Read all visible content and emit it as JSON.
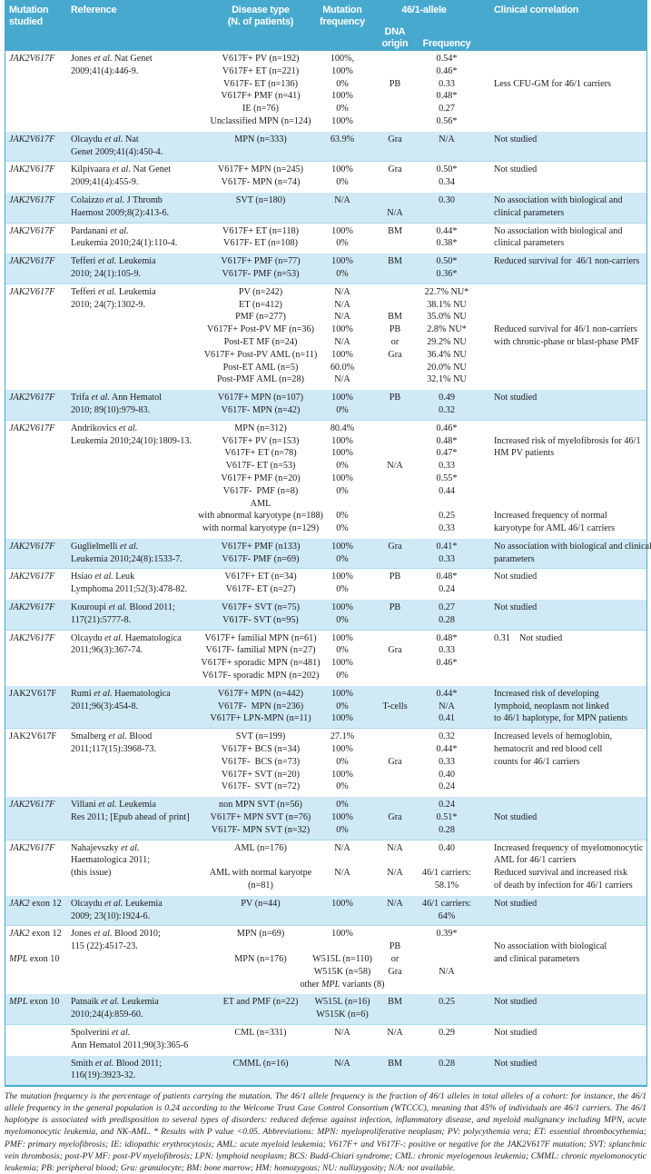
{
  "colors": {
    "header_bg": "#47a9ce",
    "band_blue": "#cfe9f5",
    "rule": "#a9d9ee"
  },
  "italic_tokens": [
    "JAK2V617F",
    "JAK2",
    "MPL"
  ],
  "table": {
    "col_names": [
      "mutation-cell",
      "reference-cell",
      "disease-type-cell",
      "mutation-frequency-cell",
      "dna-origin-cell",
      "allele-frequency-cell",
      "clinical-correlation-cell"
    ],
    "header": {
      "mutation": "Mutation\nstudied",
      "reference": "Reference",
      "disease": "Disease type\n(N. of patients)",
      "mut_freq": "Mutation\nfrequency",
      "allele_group": "46/1-allele",
      "dna_origin": "DNA origin",
      "frequency": "Frequency",
      "clinical": "Clinical correlation"
    },
    "blocks": [
      {
        "band": "white",
        "lines": [
          [
            "JAK2V617F",
            "Jones et al. Nat Genet",
            "V617F+ PV (n=192)",
            "100%,",
            "",
            "0.54*",
            ""
          ],
          [
            "",
            "2009;41(4):446-9.",
            "V617F+ ET (n=221)",
            "100%",
            "",
            "0.46*",
            ""
          ],
          [
            "",
            "",
            "V617F- ET (n=136)",
            "0%",
            "PB",
            "0.33",
            "Less CFU-GM for 46/1 carriers"
          ],
          [
            "",
            "",
            "V617F+ PMF (n=41)",
            "100%",
            "",
            "0.48*",
            ""
          ],
          [
            "",
            "",
            "IE (n=76)",
            "0%",
            "",
            "0.27",
            ""
          ],
          [
            "",
            "",
            "Unclassified MPN (n=124)",
            "100%",
            "",
            "0.56*",
            ""
          ]
        ]
      },
      {
        "band": "blue",
        "lines": [
          [
            "JAK2V617F",
            "Olcaydu et al. Nat",
            "MPN (n=333)",
            "63.9%",
            "Gra",
            "N/A",
            "Not studied"
          ],
          [
            "",
            "Genet 2009;41(4):450-4.",
            "",
            "",
            "",
            "",
            ""
          ]
        ]
      },
      {
        "band": "white",
        "lines": [
          [
            "JAK2V617F",
            "Kilpivaara et al. Nat Genet",
            "V617F+ MPN (n=245)",
            "100%",
            "Gra",
            "0.50*",
            "Not studied"
          ],
          [
            "",
            "2009;41(4):455-9.",
            "V617F- MPN (n=74)",
            "0%",
            "",
            "0.34",
            ""
          ]
        ]
      },
      {
        "band": "blue",
        "lines": [
          [
            "JAK2V617F",
            "Colaizzo et al. J Thromb",
            "SVT (n=180)",
            "N/A",
            "",
            "0.30",
            "No association with biological and"
          ],
          [
            "",
            "Haemost 2009;8(2):413-6.",
            "",
            "",
            "N/A",
            "",
            "clinical parameters"
          ]
        ]
      },
      {
        "band": "white",
        "lines": [
          [
            "JAK2V617F",
            "Pardanani et al.",
            "V617F+ ET (n=118)",
            "100%",
            "BM",
            "0.44*",
            "No association with biological and"
          ],
          [
            "",
            "Leukemia 2010;24(1):110-4.",
            "V617F- ET (n=108)",
            "0%",
            "",
            "0.38*",
            "clinical parameters"
          ]
        ]
      },
      {
        "band": "blue",
        "lines": [
          [
            "JAK2V617F",
            "Tefferi et al. Leukemia",
            "V617F+ PMF (n=77)",
            "100%",
            "BM",
            "0.50*",
            "Reduced survival for  46/1 non-carriers"
          ],
          [
            "",
            "2010; 24(1):105-9.",
            "V617F- PMF (n=53)",
            "0%",
            "",
            "0.36*",
            ""
          ]
        ]
      },
      {
        "band": "white",
        "lines": [
          [
            "JAK2V617F",
            "Tefferi et al. Leukemia",
            "PV (n=242)",
            "N/A",
            "",
            "22.7% NU*",
            ""
          ],
          [
            "",
            "2010; 24(7):1302-9.",
            "ET (n=412)",
            "N/A",
            "",
            "38.1% NU",
            ""
          ],
          [
            "",
            "",
            "PMF (n=277)",
            "N/A",
            "BM",
            "35.0% NU",
            ""
          ],
          [
            "",
            "",
            "V617F+ Post-PV MF (n=36)",
            "100%",
            "PB",
            "2.8% NU*",
            "Reduced survival for 46/1 non-carriers"
          ],
          [
            "",
            "",
            "Post-ET MF (n=24)",
            "N/A",
            "or",
            "29.2% NU",
            "with chronic-phase or blast-phase PMF"
          ],
          [
            "",
            "",
            "V617F+ Post-PV AML (n=11)",
            "100%",
            "Gra",
            "36.4% NU",
            ""
          ],
          [
            "",
            "",
            "Post-ET AML (n=5)",
            "60.0%",
            "",
            "20.0% NU",
            ""
          ],
          [
            "",
            "",
            "Post-PMF AML (n=28)",
            "N/A",
            "",
            "32.1% NU",
            ""
          ]
        ]
      },
      {
        "band": "blue",
        "lines": [
          [
            "JAK2V617F",
            "Trifa et al. Ann Hematol",
            "V617F+ MPN (n=107)",
            "100%",
            "PB",
            "0.49",
            "Not studied"
          ],
          [
            "",
            "2010; 89(10):979-83.",
            "V617F- MPN (n=42)",
            "0%",
            "",
            "0.32",
            ""
          ]
        ]
      },
      {
        "band": "white",
        "lines": [
          [
            "JAK2V617F",
            "Andrikovics et al.",
            "MPN (n=312)",
            "80.4%",
            "",
            "0.46*",
            ""
          ],
          [
            "",
            "Leukemia 2010;24(10):1809-13.",
            "V617F+ PV (n=153)",
            "100%",
            "",
            "0.48*",
            "Increased risk of myelofibrosis for 46/1"
          ],
          [
            "",
            "",
            "V617F+ ET (n=78)",
            "100%",
            "",
            "0.47*",
            "HM PV patients"
          ],
          [
            "",
            "",
            "V617F- ET (n=53)",
            "0%",
            "N/A",
            "0.33",
            ""
          ],
          [
            "",
            "",
            "V617F+ PMF (n=20)",
            "100%",
            "",
            "0.55*",
            ""
          ],
          [
            "",
            "",
            "V617F-  PMF (n=8)",
            "0%",
            "",
            "0.44",
            ""
          ],
          [
            "",
            "",
            "AML",
            "",
            "",
            "",
            ""
          ],
          [
            "",
            "",
            "with abnormal karyotype (n=188)",
            "0%",
            "",
            "0.25",
            "Increased frequency of normal"
          ],
          [
            "",
            "",
            "with normal karyotype (n=129)",
            "0%",
            "",
            "0.33",
            "karyotype for AML 46/1 carriers"
          ]
        ]
      },
      {
        "band": "blue",
        "lines": [
          [
            "JAK2V617F",
            "Guglielmelli et al.",
            "V617F+ PMF (n133)",
            "100%",
            "Gra",
            "0.41*",
            "No association with biological and clinical"
          ],
          [
            "",
            "Leukemia 2010;24(8):1533-7.",
            "V617F- PMF (n=69)",
            "0%",
            "",
            "0.33",
            "parameters"
          ]
        ]
      },
      {
        "band": "white",
        "lines": [
          [
            "JAK2V617F",
            "Hsiao et al. Leuk",
            "V617F+ ET (n=34)",
            "100%",
            "PB",
            "0.48*",
            "Not studied"
          ],
          [
            "",
            "Lymphoma 2011;52(3):478-82.",
            "V617F- ET (n=27)",
            "0%",
            "",
            "0.24",
            ""
          ]
        ]
      },
      {
        "band": "blue",
        "lines": [
          [
            "JAK2V617F",
            "Kouroupi et al. Blood 2011;",
            "V617F+ SVT (n=75)",
            "100%",
            "PB",
            "0.27",
            "Not studied"
          ],
          [
            "",
            "117(21):5777-8.",
            "V617F- SVT (n=95)",
            "0%",
            "",
            "0.28",
            ""
          ]
        ]
      },
      {
        "band": "white",
        "lines": [
          [
            "JAK2V617F",
            "Olcaydu et al. Haematologica",
            "V617F+ familial MPN (n=61)",
            "100%",
            "",
            "0.48*",
            "0.31    Not studied"
          ],
          [
            "",
            "2011;96(3):367-74.",
            "V617F- familial MPN (n=27)",
            "0%",
            "Gra",
            "0.33",
            ""
          ],
          [
            "",
            "",
            "V617F+ sporadic MPN (n=481)",
            "100%",
            "",
            "0.46*",
            ""
          ],
          [
            "",
            "",
            "V617F- sporadic MPN (n=202)",
            "0%",
            "",
            "",
            ""
          ]
        ]
      },
      {
        "band": "blue",
        "mut_upright": true,
        "lines": [
          [
            "JAK2V617F",
            "Rumi et al. Haematologica",
            "V617F+ MPN (n=442)",
            "100%",
            "",
            "0.44*",
            "Increased risk of developing"
          ],
          [
            "",
            "2011;96(3):454-8.",
            "V617F-  MPN (n=236)",
            "0%",
            "T-cells",
            "N/A",
            "lymphoid, neoplasm not linked"
          ],
          [
            "",
            "",
            "V617F+ LPN-MPN (n=11)",
            "100%",
            "",
            "0.41",
            "to 46/1 haplotype, for MPN patients"
          ]
        ]
      },
      {
        "band": "white",
        "mut_upright": true,
        "lines": [
          [
            "JAK2V617F",
            "Smalberg et al. Blood",
            "SVT (n=199)",
            "27.1%",
            "",
            "0.32",
            "Increased levels of hemoglobin,"
          ],
          [
            "",
            "2011;117(15):3968-73.",
            "V617F+ BCS (n=34)",
            "100%",
            "",
            "0.44*",
            "hematocrit and red blood cell"
          ],
          [
            "",
            "",
            "V617F-  BCS (n=73)",
            "0%",
            "Gra",
            "0.33",
            "counts for 46/1 carriers"
          ],
          [
            "",
            "",
            "V617F+ SVT (n=20)",
            "100%",
            "",
            "0.40",
            ""
          ],
          [
            "",
            "",
            "V617F-  SVT (n=72)",
            "0%",
            "",
            "0.24",
            ""
          ]
        ]
      },
      {
        "band": "blue",
        "lines": [
          [
            "JAK2V617F",
            "Villani et al. Leukemia",
            "non MPN SVT (n=56)",
            "0%",
            "",
            "0.24",
            ""
          ],
          [
            "",
            "Res 2011; [Epub ahead of print]",
            "V617F+ MPN SVT (n=76)",
            "100%",
            "Gra",
            "0.51*",
            "Not studied"
          ],
          [
            "",
            "",
            "V617F- MPN SVT (n=32)",
            "0%",
            "",
            "0.28",
            ""
          ]
        ]
      },
      {
        "band": "white",
        "lines": [
          [
            "JAK2V617F",
            "Nahajevszky et al.",
            "AML (n=176)",
            "N/A",
            "N/A",
            "0.40",
            "Increased frequency of myelomonocytic"
          ],
          [
            "",
            "Haematologica 2011;",
            "",
            "",
            "",
            "",
            "AML for 46/1 carriers"
          ],
          [
            "",
            "(this issue)",
            "AML with normal karyotpe",
            "N/A",
            "N/A",
            "46/1 carriers:",
            "Reduced survival and increased risk"
          ],
          [
            "",
            "",
            "(n=81)",
            "",
            "",
            "58.1%",
            "of death by infection for 46/1 carriers"
          ]
        ]
      },
      {
        "band": "blue",
        "lines": [
          [
            "JAK2 exon 12",
            "Olcaydu et al. Leukemia",
            "PV (n=44)",
            "100%",
            "N/A",
            "46/1 carriers:",
            "Not studied"
          ],
          [
            "",
            "2009; 23(10):1924-6.",
            "",
            "",
            "",
            "64%",
            ""
          ]
        ]
      },
      {
        "band": "white",
        "lines": [
          [
            "JAK2 exon 12",
            "Jones et al. Blood 2010;",
            "MPN (n=69)",
            "100%",
            "",
            "0.39*",
            ""
          ],
          [
            "",
            "115 (22):4517-23.",
            "",
            "",
            "PB",
            "",
            "No association with biological"
          ],
          [
            "MPL exon 10",
            "",
            "MPN (n=176)",
            "W515L (n=110)",
            "or",
            "",
            "and clinical parameters"
          ],
          [
            "",
            "",
            "",
            "W515K (n=58)",
            "Gra",
            "N/A",
            ""
          ],
          [
            "",
            "",
            "",
            "other MPL variants (8)",
            "",
            "",
            ""
          ]
        ]
      },
      {
        "band": "blue",
        "lines": [
          [
            "MPL exon 10",
            "Patnaik et al. Leukemia",
            "ET and PMF (n=22)",
            "W515L (n=16)",
            "BM",
            "0.25",
            "Not studied"
          ],
          [
            "",
            "2010;24(4):859-60.",
            "",
            "W515K (n=6)",
            "",
            "",
            ""
          ]
        ]
      },
      {
        "band": "white",
        "lines": [
          [
            "",
            "Spolverini et al.",
            "CML (n=331)",
            "N/A",
            "N/A",
            "0.29",
            "Not studied"
          ],
          [
            "",
            "Ann Hematol 2011;90(3):365-6",
            "",
            "",
            "",
            "",
            ""
          ]
        ]
      },
      {
        "band": "blue",
        "lines": [
          [
            "",
            "Smith et al. Blood 2011;",
            "CMML (n=16)",
            "N/A",
            "BM",
            "0.28",
            "Not studied"
          ],
          [
            "",
            "116(19):3923-32.",
            "",
            "",
            "",
            "",
            ""
          ]
        ]
      }
    ]
  },
  "footnote": "The mutation frequency is the percentage of patients carrying the mutation. The 46/1 allele frequency is the fraction of 46/1 alleles in total alleles of a cohort: for instance, the 46/1 allele frequency in the general population is 0.24 according to the Welcome Trust Case Control Consortium (WTCCC), meaning that 45% of individuals are 46/1 carriers. The 46/1 haplotype is associated with predisposition to several types of disorders: reduced defense against infection, inflammatory disease, and myeloid malignancy including MPN, acute myelomonocytic leukemia, and NK-AML. * Results with P value <0.05. Abbreviations: MPN: myeloproliferative neoplasm; PV: polycythemia vera; ET: essential thrombocythemia; PMF: primary myelofibrosis; IE: idiopathic erythrocytosis; AML: acute myeloid leukemia; V617F+ and V617F-: positive or negative for the JAK2V617F mutation; SVT: splanchnic vein thrombosis; post-PV MF: post-PV myelofibrosis; LPN: lymphoid neoplasm; BCS: Budd-Chiari syndrome; CML: chronic myelogenous leukemia; CMML: chronic myelomonocytic leukemia; PB: peripheral blood; Gra: granulocyte; BM: bone marrow; HM: homozygous; NU: nullizygosity; N/A: not available."
}
